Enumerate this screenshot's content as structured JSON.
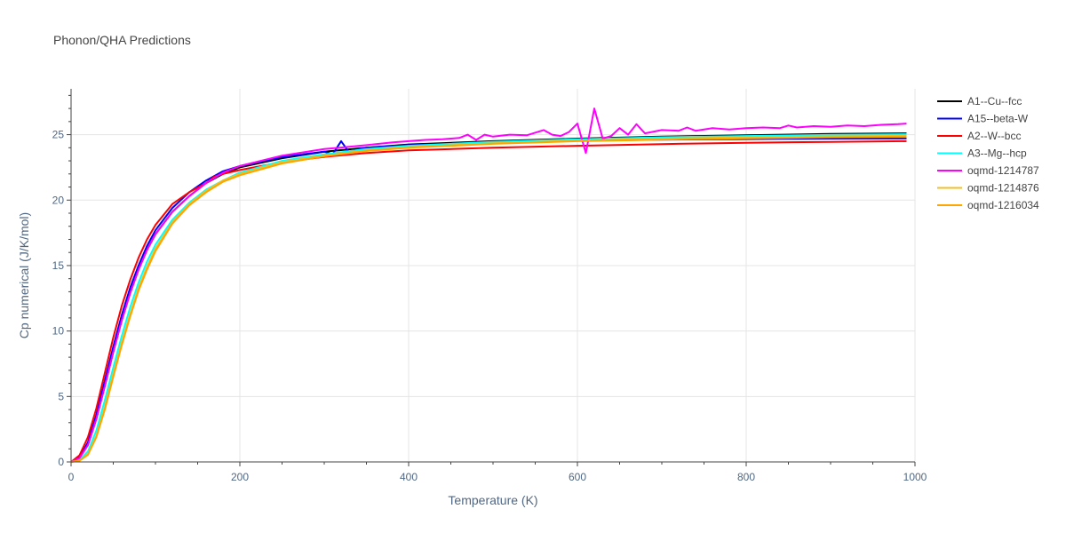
{
  "chart_data": {
    "type": "line",
    "title": "Phonon/QHA Predictions",
    "xlabel": "Temperature (K)",
    "ylabel": "Cp numerical (J/K/mol)",
    "xlim": [
      0,
      1000
    ],
    "ylim": [
      0,
      28.5
    ],
    "x_ticks": [
      0,
      200,
      400,
      600,
      800,
      1000
    ],
    "y_ticks": [
      0,
      5,
      10,
      15,
      20,
      25
    ],
    "grid": true,
    "legend_position": "top-right",
    "series": [
      {
        "name": "A1--Cu--fcc",
        "color": "#000000",
        "points": [
          [
            0,
            0
          ],
          [
            10,
            0.3
          ],
          [
            20,
            1.3
          ],
          [
            30,
            3.3
          ],
          [
            40,
            5.8
          ],
          [
            50,
            8.4
          ],
          [
            60,
            10.8
          ],
          [
            70,
            12.9
          ],
          [
            80,
            14.7
          ],
          [
            90,
            16.2
          ],
          [
            100,
            17.4
          ],
          [
            120,
            19.1
          ],
          [
            140,
            20.3
          ],
          [
            160,
            21.3
          ],
          [
            180,
            22.0
          ],
          [
            200,
            22.5
          ],
          [
            250,
            23.2
          ],
          [
            300,
            23.7
          ],
          [
            350,
            24.0
          ],
          [
            400,
            24.25
          ],
          [
            500,
            24.5
          ],
          [
            600,
            24.7
          ],
          [
            700,
            24.85
          ],
          [
            800,
            24.95
          ],
          [
            900,
            25.05
          ],
          [
            990,
            25.1
          ]
        ]
      },
      {
        "name": "A15--beta-W",
        "color": "#0000ff",
        "points": [
          [
            0,
            0
          ],
          [
            10,
            0.35
          ],
          [
            20,
            1.5
          ],
          [
            30,
            3.6
          ],
          [
            40,
            6.2
          ],
          [
            50,
            8.8
          ],
          [
            60,
            11.2
          ],
          [
            70,
            13.3
          ],
          [
            80,
            15.0
          ],
          [
            90,
            16.5
          ],
          [
            100,
            17.7
          ],
          [
            120,
            19.4
          ],
          [
            140,
            20.6
          ],
          [
            160,
            21.5
          ],
          [
            180,
            22.2
          ],
          [
            200,
            22.6
          ],
          [
            250,
            23.3
          ],
          [
            300,
            23.7
          ],
          [
            310,
            23.5
          ],
          [
            320,
            24.5
          ],
          [
            330,
            23.6
          ],
          [
            340,
            23.9
          ],
          [
            350,
            24.0
          ],
          [
            400,
            24.2
          ],
          [
            500,
            24.4
          ],
          [
            600,
            24.55
          ],
          [
            700,
            24.62
          ],
          [
            800,
            24.66
          ],
          [
            900,
            24.7
          ],
          [
            990,
            24.72
          ]
        ]
      },
      {
        "name": "A2--W--bcc",
        "color": "#ff0000",
        "points": [
          [
            0,
            0
          ],
          [
            10,
            0.5
          ],
          [
            20,
            1.9
          ],
          [
            30,
            4.1
          ],
          [
            40,
            6.8
          ],
          [
            50,
            9.5
          ],
          [
            60,
            11.9
          ],
          [
            70,
            13.9
          ],
          [
            80,
            15.6
          ],
          [
            90,
            17.0
          ],
          [
            100,
            18.1
          ],
          [
            120,
            19.7
          ],
          [
            140,
            20.6
          ],
          [
            160,
            21.3
          ],
          [
            170,
            21.8
          ],
          [
            180,
            22.0
          ],
          [
            200,
            22.3
          ],
          [
            250,
            22.9
          ],
          [
            300,
            23.3
          ],
          [
            350,
            23.6
          ],
          [
            400,
            23.8
          ],
          [
            500,
            24.0
          ],
          [
            600,
            24.15
          ],
          [
            700,
            24.28
          ],
          [
            800,
            24.38
          ],
          [
            900,
            24.45
          ],
          [
            990,
            24.5
          ]
        ]
      },
      {
        "name": "A3--Mg--hcp",
        "color": "#00ffff",
        "points": [
          [
            0,
            0
          ],
          [
            10,
            0.15
          ],
          [
            20,
            0.8
          ],
          [
            30,
            2.4
          ],
          [
            40,
            4.7
          ],
          [
            50,
            7.2
          ],
          [
            60,
            9.6
          ],
          [
            70,
            11.8
          ],
          [
            80,
            13.7
          ],
          [
            90,
            15.3
          ],
          [
            100,
            16.6
          ],
          [
            120,
            18.5
          ],
          [
            140,
            19.8
          ],
          [
            160,
            20.8
          ],
          [
            180,
            21.5
          ],
          [
            200,
            22.1
          ],
          [
            250,
            23.0
          ],
          [
            300,
            23.5
          ],
          [
            350,
            23.9
          ],
          [
            400,
            24.15
          ],
          [
            500,
            24.45
          ],
          [
            600,
            24.65
          ],
          [
            700,
            24.8
          ],
          [
            800,
            24.9
          ],
          [
            900,
            24.98
          ],
          [
            990,
            25.03
          ]
        ]
      },
      {
        "name": "oqmd-1214787",
        "color": "#ff00ff",
        "points": [
          [
            0,
            0
          ],
          [
            10,
            0.3
          ],
          [
            20,
            1.3
          ],
          [
            30,
            3.3
          ],
          [
            40,
            5.8
          ],
          [
            50,
            8.4
          ],
          [
            60,
            10.8
          ],
          [
            70,
            12.9
          ],
          [
            80,
            14.7
          ],
          [
            90,
            16.2
          ],
          [
            100,
            17.4
          ],
          [
            120,
            19.1
          ],
          [
            140,
            20.3
          ],
          [
            160,
            21.3
          ],
          [
            180,
            22.1
          ],
          [
            200,
            22.6
          ],
          [
            250,
            23.4
          ],
          [
            300,
            23.9
          ],
          [
            350,
            24.2
          ],
          [
            380,
            24.4
          ],
          [
            400,
            24.5
          ],
          [
            420,
            24.6
          ],
          [
            440,
            24.65
          ],
          [
            460,
            24.75
          ],
          [
            470,
            25.0
          ],
          [
            480,
            24.6
          ],
          [
            490,
            25.0
          ],
          [
            500,
            24.85
          ],
          [
            520,
            25.0
          ],
          [
            540,
            24.95
          ],
          [
            560,
            25.35
          ],
          [
            570,
            25.0
          ],
          [
            580,
            24.9
          ],
          [
            590,
            25.2
          ],
          [
            600,
            25.85
          ],
          [
            610,
            23.6
          ],
          [
            620,
            27.0
          ],
          [
            630,
            24.7
          ],
          [
            640,
            24.9
          ],
          [
            650,
            25.5
          ],
          [
            660,
            25.0
          ],
          [
            670,
            25.8
          ],
          [
            680,
            25.1
          ],
          [
            700,
            25.35
          ],
          [
            720,
            25.3
          ],
          [
            730,
            25.55
          ],
          [
            740,
            25.3
          ],
          [
            760,
            25.5
          ],
          [
            780,
            25.4
          ],
          [
            800,
            25.5
          ],
          [
            820,
            25.55
          ],
          [
            840,
            25.5
          ],
          [
            850,
            25.7
          ],
          [
            860,
            25.55
          ],
          [
            880,
            25.65
          ],
          [
            900,
            25.6
          ],
          [
            920,
            25.7
          ],
          [
            940,
            25.65
          ],
          [
            960,
            25.75
          ],
          [
            980,
            25.8
          ],
          [
            990,
            25.85
          ]
        ]
      },
      {
        "name": "oqmd-1214876",
        "color": "#f0c020",
        "points": [
          [
            0,
            0
          ],
          [
            10,
            0.1
          ],
          [
            20,
            0.6
          ],
          [
            30,
            2.0
          ],
          [
            40,
            4.2
          ],
          [
            50,
            6.7
          ],
          [
            60,
            9.1
          ],
          [
            70,
            11.3
          ],
          [
            80,
            13.3
          ],
          [
            90,
            14.9
          ],
          [
            100,
            16.3
          ],
          [
            120,
            18.3
          ],
          [
            140,
            19.7
          ],
          [
            160,
            20.7
          ],
          [
            180,
            21.5
          ],
          [
            200,
            22.0
          ],
          [
            250,
            22.9
          ],
          [
            300,
            23.4
          ],
          [
            350,
            23.8
          ],
          [
            400,
            24.05
          ],
          [
            500,
            24.35
          ],
          [
            600,
            24.55
          ],
          [
            700,
            24.7
          ],
          [
            800,
            24.8
          ],
          [
            900,
            24.87
          ],
          [
            990,
            24.92
          ]
        ]
      },
      {
        "name": "oqmd-1216034",
        "color": "#ffa500",
        "points": [
          [
            0,
            0
          ],
          [
            10,
            0.1
          ],
          [
            20,
            0.55
          ],
          [
            30,
            1.9
          ],
          [
            40,
            4.0
          ],
          [
            50,
            6.5
          ],
          [
            60,
            8.9
          ],
          [
            70,
            11.1
          ],
          [
            80,
            13.1
          ],
          [
            90,
            14.7
          ],
          [
            100,
            16.1
          ],
          [
            120,
            18.2
          ],
          [
            140,
            19.6
          ],
          [
            160,
            20.6
          ],
          [
            180,
            21.4
          ],
          [
            200,
            21.9
          ],
          [
            250,
            22.8
          ],
          [
            300,
            23.35
          ],
          [
            350,
            23.75
          ],
          [
            400,
            24.0
          ],
          [
            500,
            24.3
          ],
          [
            600,
            24.5
          ],
          [
            700,
            24.62
          ],
          [
            800,
            24.72
          ],
          [
            900,
            24.8
          ],
          [
            990,
            24.85
          ]
        ]
      }
    ]
  }
}
